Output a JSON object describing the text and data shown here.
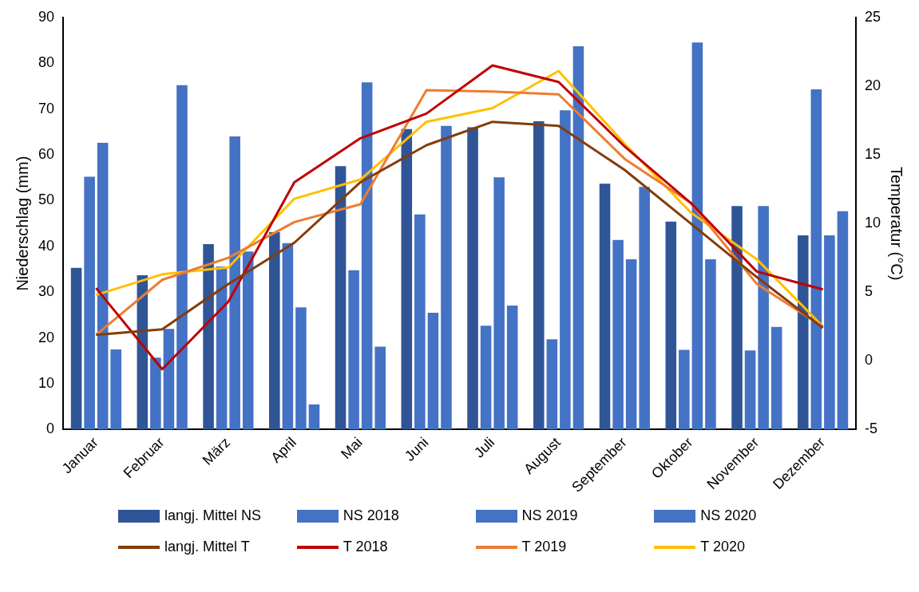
{
  "chart_data": {
    "type": "bar",
    "ylabel": "Niederschlag (mm)",
    "y2label": "Temperatur (°C)",
    "categories": [
      "Januar",
      "Februar",
      "März",
      "April",
      "Mai",
      "Juni",
      "Juli",
      "August",
      "September",
      "Oktober",
      "November",
      "Dezember"
    ],
    "series": [
      {
        "name": "langj. Mittel NS",
        "color": "#2f5597",
        "values": [
          35.3,
          33.7,
          40.5,
          43.1,
          57.5,
          65.6,
          66.0,
          67.3,
          53.7,
          45.4,
          48.8,
          42.4
        ]
      },
      {
        "name": "NS 2018",
        "color": "#4472c4",
        "values": [
          55.2,
          15.7,
          35.6,
          40.7,
          34.8,
          47.0,
          22.7,
          19.7,
          41.4,
          17.4,
          17.3,
          74.3
        ]
      },
      {
        "name": "NS 2019",
        "color": "#4472c4",
        "values": [
          62.6,
          22.0,
          64.0,
          26.7,
          75.8,
          25.5,
          55.1,
          69.7,
          37.2,
          84.5,
          48.8,
          42.4
        ]
      },
      {
        "name": "NS 2020",
        "color": "#4472c4",
        "values": [
          17.5,
          75.2,
          38.9,
          5.5,
          18.1,
          66.3,
          27.1,
          83.7,
          53.0,
          37.2,
          22.4,
          47.7
        ]
      },
      {
        "name": "langj. Mittel T",
        "type": "line",
        "axis": "y2",
        "color": "#843c0c",
        "values": [
          1.9,
          2.3,
          5.6,
          8.6,
          13.0,
          15.7,
          17.4,
          17.1,
          13.9,
          10.0,
          6.1,
          2.4
        ]
      },
      {
        "name": "T 2018",
        "type": "line",
        "axis": "y2",
        "color": "#c00000",
        "values": [
          5.3,
          -0.6,
          4.3,
          13.0,
          16.2,
          18.0,
          21.5,
          20.3,
          15.6,
          11.5,
          6.5,
          5.2
        ]
      },
      {
        "name": "T 2019",
        "type": "line",
        "axis": "y2",
        "color": "#ed7d31",
        "values": [
          1.9,
          5.9,
          7.5,
          10.1,
          11.4,
          19.7,
          19.6,
          19.4,
          14.7,
          11.5,
          5.6,
          2.5
        ]
      },
      {
        "name": "T 2020",
        "type": "line",
        "axis": "y2",
        "color": "#ffc000",
        "values": [
          4.8,
          6.3,
          6.8,
          11.8,
          13.2,
          17.4,
          18.4,
          21.1,
          15.8,
          10.8,
          7.4,
          2.5
        ]
      }
    ],
    "ylim": [
      0,
      90
    ],
    "yticks": [
      0,
      10,
      20,
      30,
      40,
      50,
      60,
      70,
      80,
      90
    ],
    "y2lim": [
      -5,
      25
    ],
    "y2ticks": [
      -5,
      0,
      5,
      10,
      15,
      20,
      25
    ],
    "legend": "bottom",
    "grid": false,
    "marker": "none",
    "line_style": "solid"
  }
}
